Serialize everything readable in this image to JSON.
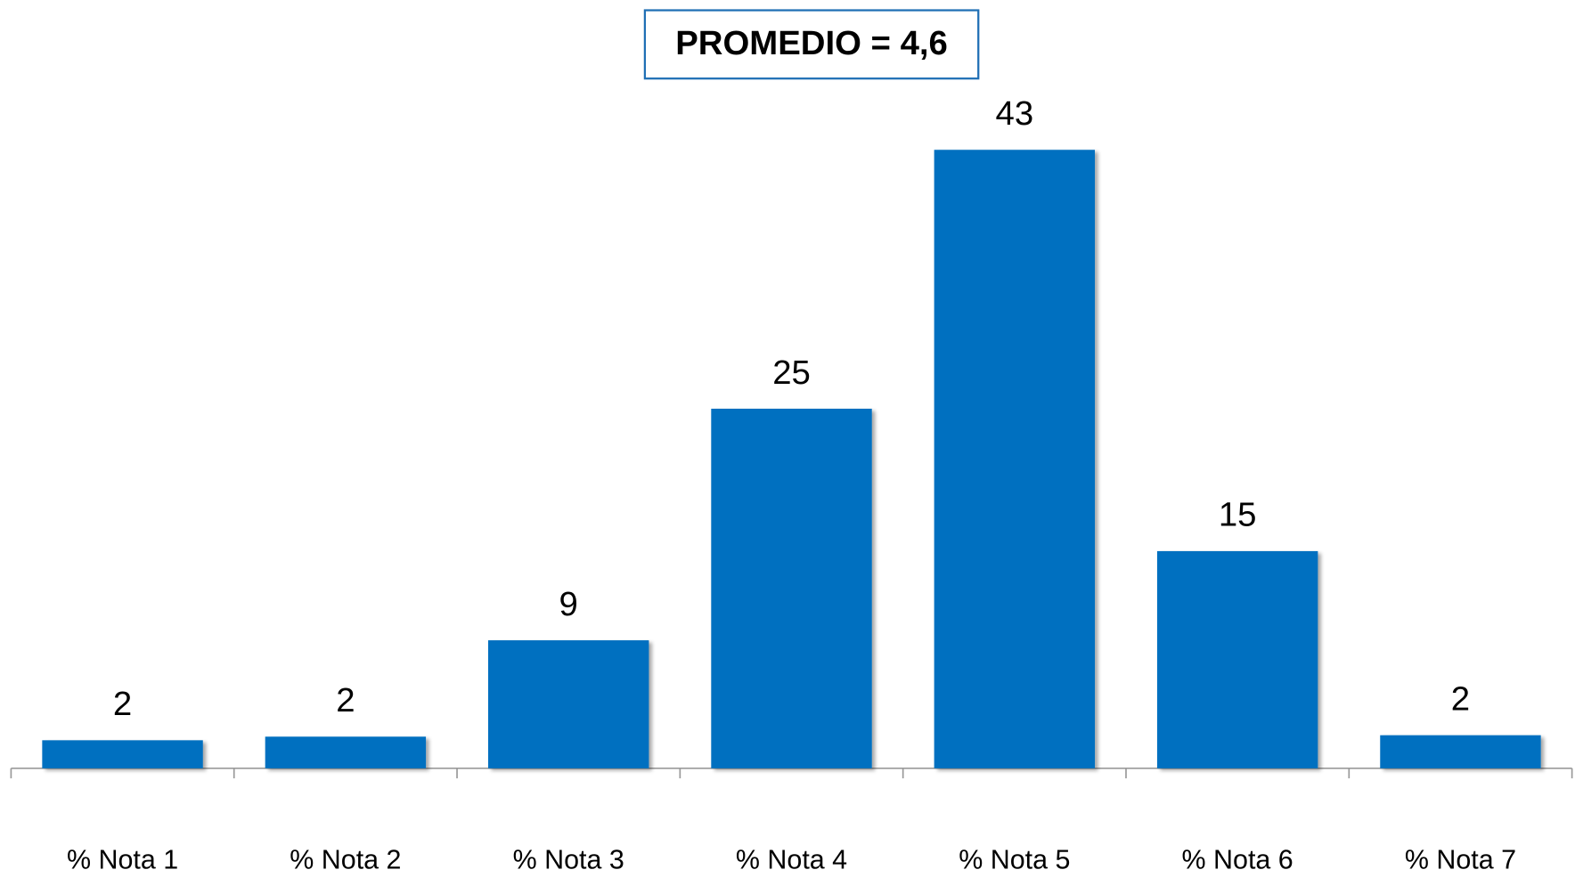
{
  "chart_data": {
    "type": "bar",
    "title": "PROMEDIO = 4,6",
    "categories": [
      "% Nota 1",
      "% Nota 2",
      "% Nota 3",
      "% Nota 4",
      "% Nota 5",
      "% Nota 6",
      "% Nota 7"
    ],
    "values": [
      1.95,
      2.2,
      8.9,
      25,
      43,
      15.1,
      2.3
    ],
    "value_labels": [
      "2",
      "2",
      "9",
      "25",
      "43",
      "15",
      "2"
    ],
    "color": "#0070c0"
  }
}
